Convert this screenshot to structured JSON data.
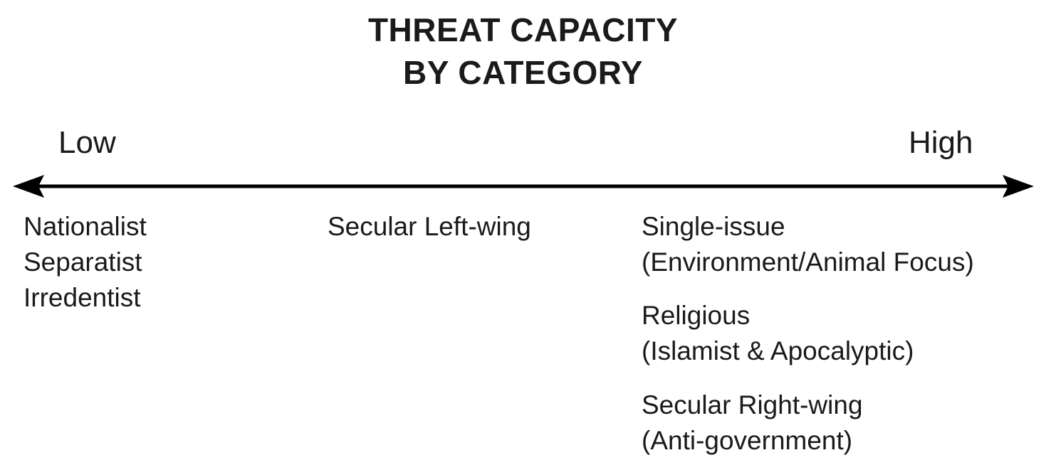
{
  "title": {
    "line1": "THREAT CAPACITY",
    "line2": "BY CATEGORY"
  },
  "scale": {
    "low": "Low",
    "high": "High"
  },
  "categories": {
    "low": [
      "Nationalist",
      "Separatist",
      "Irredentist"
    ],
    "mid": [
      "Secular Left-wing"
    ],
    "high": [
      [
        "Single-issue",
        "(Environment/Animal Focus)"
      ],
      [
        "Religious",
        "(Islamist & Apocalyptic)"
      ],
      [
        "Secular Right-wing",
        "(Anti-government)"
      ]
    ]
  },
  "colors": {
    "text": "#1a1a1a",
    "arrow": "#000000",
    "background": "#ffffff"
  }
}
